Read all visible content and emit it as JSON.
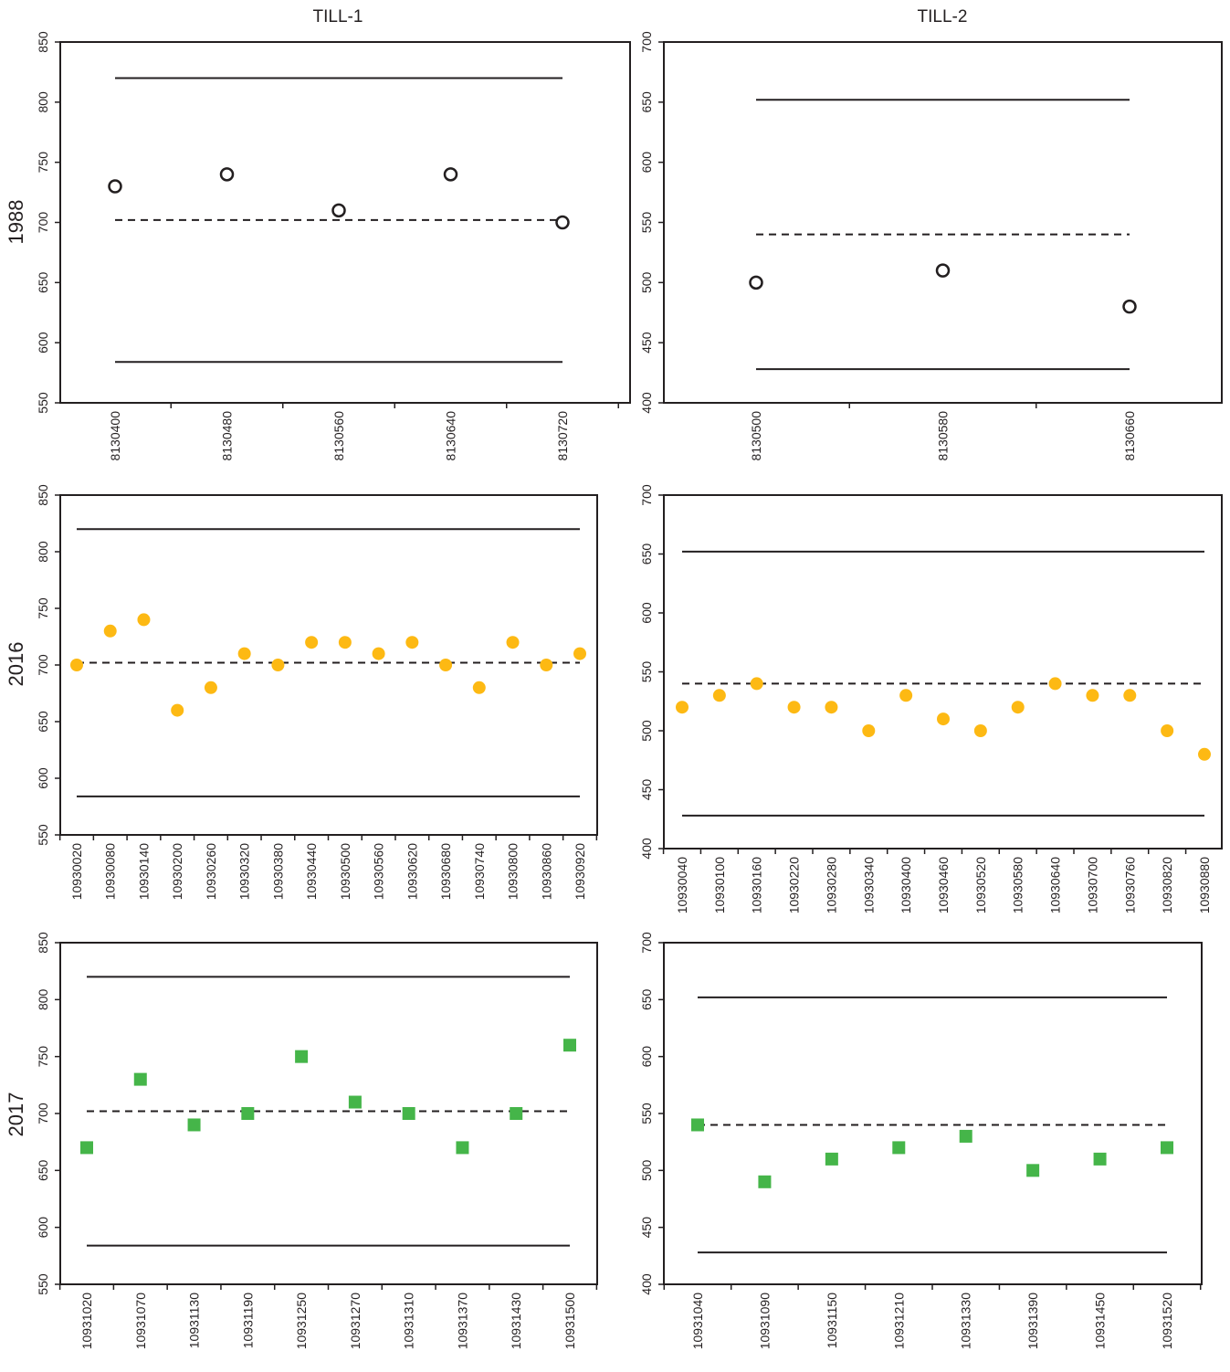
{
  "column_titles": [
    "TILL-1",
    "TILL-2"
  ],
  "row_labels": [
    "1988",
    "2016",
    "2017"
  ],
  "colors": {
    "circle_1988": "#231f20",
    "circle_2016": "#fdb913",
    "square_2017": "#45b549",
    "line": "#231f20"
  },
  "chart_data": [
    {
      "type": "scatter",
      "column": "TILL-1",
      "row": "1988",
      "marker": "open-circle",
      "categories": [
        "8130400",
        "8130480",
        "8130560",
        "8130640",
        "8130720"
      ],
      "values": [
        730,
        740,
        710,
        740,
        700
      ],
      "ylim": [
        550,
        850
      ],
      "yticks": [
        550,
        600,
        650,
        700,
        750,
        800,
        850
      ],
      "upper_limit": 820,
      "mean": 702,
      "lower_limit": 584
    },
    {
      "type": "scatter",
      "column": "TILL-2",
      "row": "1988",
      "marker": "open-circle",
      "categories": [
        "8130500",
        "8130580",
        "8130660"
      ],
      "values": [
        500,
        510,
        480
      ],
      "ylim": [
        400,
        700
      ],
      "yticks": [
        400,
        450,
        500,
        550,
        600,
        650,
        700
      ],
      "upper_limit": 652,
      "mean": 540,
      "lower_limit": 428
    },
    {
      "type": "scatter",
      "column": "TILL-1",
      "row": "2016",
      "marker": "filled-circle",
      "categories": [
        "10930020",
        "10930080",
        "10930140",
        "10930200",
        "10930260",
        "10930320",
        "10930380",
        "10930440",
        "10930500",
        "10930560",
        "10930620",
        "10930680",
        "10930740",
        "10930800",
        "10930860",
        "10930920"
      ],
      "values": [
        700,
        730,
        740,
        660,
        680,
        710,
        700,
        720,
        720,
        710,
        720,
        700,
        680,
        720,
        700,
        710
      ],
      "ylim": [
        550,
        850
      ],
      "yticks": [
        550,
        600,
        650,
        700,
        750,
        800,
        850
      ],
      "upper_limit": 820,
      "mean": 702,
      "lower_limit": 584
    },
    {
      "type": "scatter",
      "column": "TILL-2",
      "row": "2016",
      "marker": "filled-circle",
      "categories": [
        "10930040",
        "10930100",
        "10930160",
        "10930220",
        "10930280",
        "10930340",
        "10930400",
        "10930460",
        "10930520",
        "10930580",
        "10930640",
        "10930700",
        "10930760",
        "10930820",
        "10930880"
      ],
      "values": [
        520,
        530,
        540,
        520,
        520,
        500,
        530,
        510,
        500,
        520,
        540,
        530,
        530,
        500,
        480
      ],
      "ylim": [
        400,
        700
      ],
      "yticks": [
        400,
        450,
        500,
        550,
        600,
        650,
        700
      ],
      "upper_limit": 652,
      "mean": 540,
      "lower_limit": 428
    },
    {
      "type": "scatter",
      "column": "TILL-1",
      "row": "2017",
      "marker": "square",
      "categories": [
        "10931020",
        "10931070",
        "10931130",
        "10931190",
        "10931250",
        "10931270",
        "10931310",
        "10931370",
        "10931430",
        "10931500"
      ],
      "values": [
        670,
        730,
        690,
        700,
        750,
        710,
        700,
        670,
        700,
        760
      ],
      "ylim": [
        550,
        850
      ],
      "yticks": [
        550,
        600,
        650,
        700,
        750,
        800,
        850
      ],
      "upper_limit": 820,
      "mean": 702,
      "lower_limit": 584
    },
    {
      "type": "scatter",
      "column": "TILL-2",
      "row": "2017",
      "marker": "square",
      "categories": [
        "10931040",
        "10931090",
        "10931150",
        "10931210",
        "10931330",
        "10931390",
        "10931450",
        "10931520"
      ],
      "values": [
        540,
        490,
        510,
        520,
        530,
        500,
        510,
        520
      ],
      "ylim": [
        400,
        700
      ],
      "yticks": [
        400,
        450,
        500,
        550,
        600,
        650,
        700
      ],
      "upper_limit": 652,
      "mean": 540,
      "lower_limit": 428
    }
  ]
}
